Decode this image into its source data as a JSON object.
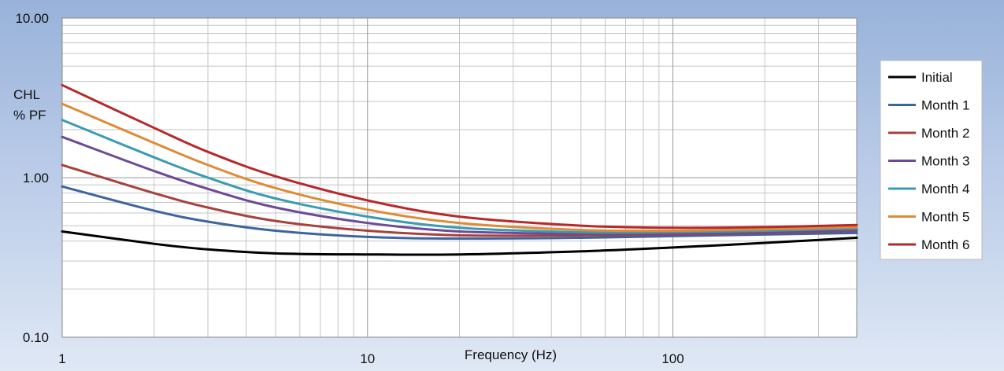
{
  "chart_data": {
    "type": "line",
    "xlabel": "Frequency  (Hz)",
    "ylabel_lines": [
      "CHL",
      "% PF"
    ],
    "x_scale": "log",
    "y_scale": "log",
    "xlim": [
      1,
      400
    ],
    "ylim": [
      0.1,
      10
    ],
    "x_ticks": [
      {
        "value": 1,
        "label": "1"
      },
      {
        "value": 10,
        "label": "10"
      },
      {
        "value": 100,
        "label": "100"
      }
    ],
    "y_ticks": [
      {
        "value": 10,
        "label": "10.00"
      },
      {
        "value": 1,
        "label": "1.00"
      },
      {
        "value": 0.1,
        "label": "0.10"
      }
    ],
    "grid": true,
    "legend_position": "right",
    "series": [
      {
        "name": "Initial",
        "color": "#000000",
        "x": [
          1,
          2,
          3,
          5,
          10,
          20,
          50,
          100,
          200,
          400
        ],
        "y": [
          0.46,
          0.385,
          0.355,
          0.335,
          0.33,
          0.33,
          0.345,
          0.365,
          0.39,
          0.42
        ]
      },
      {
        "name": "Month 1",
        "color": "#3e64a0",
        "x": [
          1,
          2,
          3,
          5,
          10,
          20,
          50,
          100,
          200,
          400
        ],
        "y": [
          0.88,
          0.62,
          0.53,
          0.465,
          0.425,
          0.415,
          0.42,
          0.43,
          0.44,
          0.45
        ]
      },
      {
        "name": "Month 2",
        "color": "#a8403c",
        "x": [
          1,
          2,
          3,
          5,
          10,
          20,
          50,
          100,
          200,
          400
        ],
        "y": [
          1.2,
          0.8,
          0.65,
          0.535,
          0.465,
          0.435,
          0.435,
          0.44,
          0.45,
          0.465
        ]
      },
      {
        "name": "Month 3",
        "color": "#6c4a98",
        "x": [
          1,
          2,
          3,
          5,
          10,
          20,
          50,
          100,
          200,
          400
        ],
        "y": [
          1.8,
          1.1,
          0.85,
          0.65,
          0.52,
          0.46,
          0.445,
          0.445,
          0.455,
          0.47
        ]
      },
      {
        "name": "Month 4",
        "color": "#3b9bb0",
        "x": [
          1,
          2,
          3,
          5,
          10,
          20,
          50,
          100,
          200,
          400
        ],
        "y": [
          2.3,
          1.34,
          1.0,
          0.74,
          0.57,
          0.485,
          0.455,
          0.455,
          0.465,
          0.48
        ]
      },
      {
        "name": "Month 5",
        "color": "#e08a36",
        "x": [
          1,
          2,
          3,
          5,
          10,
          20,
          50,
          100,
          200,
          400
        ],
        "y": [
          2.9,
          1.65,
          1.2,
          0.86,
          0.63,
          0.52,
          0.47,
          0.465,
          0.475,
          0.49
        ]
      },
      {
        "name": "Month 6",
        "color": "#b8282a",
        "x": [
          1,
          2,
          3,
          5,
          10,
          20,
          50,
          100,
          200,
          400
        ],
        "y": [
          3.8,
          2.05,
          1.45,
          1.02,
          0.72,
          0.57,
          0.5,
          0.485,
          0.49,
          0.505
        ]
      }
    ]
  }
}
